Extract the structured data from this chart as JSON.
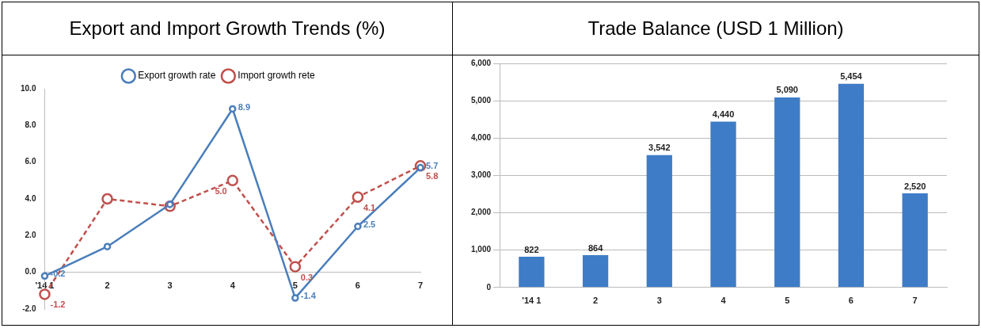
{
  "chart_data": [
    {
      "type": "line",
      "title": "Export and Import Growth Trends (%)",
      "categories": [
        "'14 1",
        "2",
        "3",
        "4",
        "5",
        "6",
        "7"
      ],
      "series": [
        {
          "name": "Export growth rate",
          "color": "#4a7ebb",
          "line_style": "solid",
          "values": [
            -0.2,
            1.4,
            3.7,
            8.9,
            -1.4,
            2.5,
            5.7
          ],
          "value_labels": [
            "-0.2",
            null,
            null,
            "8.9",
            "-1.4",
            "2.5",
            "5.7"
          ]
        },
        {
          "name": "Import growth rete",
          "color": "#c0504d",
          "line_style": "dashed",
          "values": [
            -1.2,
            4.0,
            3.6,
            5.0,
            0.3,
            4.1,
            5.8
          ],
          "value_labels": [
            "-1.2",
            null,
            null,
            "5.0",
            "0.3",
            "4.1",
            "5.8"
          ]
        }
      ],
      "marker": "circle",
      "grid": false,
      "legend": "top",
      "ylim": [
        -2,
        10
      ],
      "yticks": [
        {
          "value": -2,
          "label": "-2.0"
        },
        {
          "value": 0,
          "label": "0.0"
        },
        {
          "value": 2,
          "label": "2.0"
        },
        {
          "value": 4,
          "label": "4.0"
        },
        {
          "value": 6,
          "label": "6.0"
        },
        {
          "value": 8,
          "label": "8.0"
        },
        {
          "value": 10,
          "label": "10.0"
        }
      ]
    },
    {
      "type": "bar",
      "title": "Trade Balance (USD 1 Million)",
      "categories": [
        "'14 1",
        "2",
        "3",
        "4",
        "5",
        "6",
        "7"
      ],
      "values": [
        822,
        864,
        3542,
        4440,
        5090,
        5454,
        2520
      ],
      "color": "#3e7cc7",
      "value_labels": [
        "822",
        "864",
        "3,542",
        "4,440",
        "5,090",
        "5,454",
        "2,520"
      ],
      "grid": "y",
      "legend": false,
      "ylim": [
        0,
        6000
      ],
      "yticks": [
        0,
        {
          "value": 1000,
          "label": "1,000"
        },
        {
          "value": 2000,
          "label": "2,000"
        },
        {
          "value": 3000,
          "label": "3,000"
        },
        {
          "value": 4000,
          "label": "4,000"
        },
        {
          "value": 5000,
          "label": "5,000"
        },
        {
          "value": 6000,
          "label": "6,000"
        }
      ]
    }
  ]
}
